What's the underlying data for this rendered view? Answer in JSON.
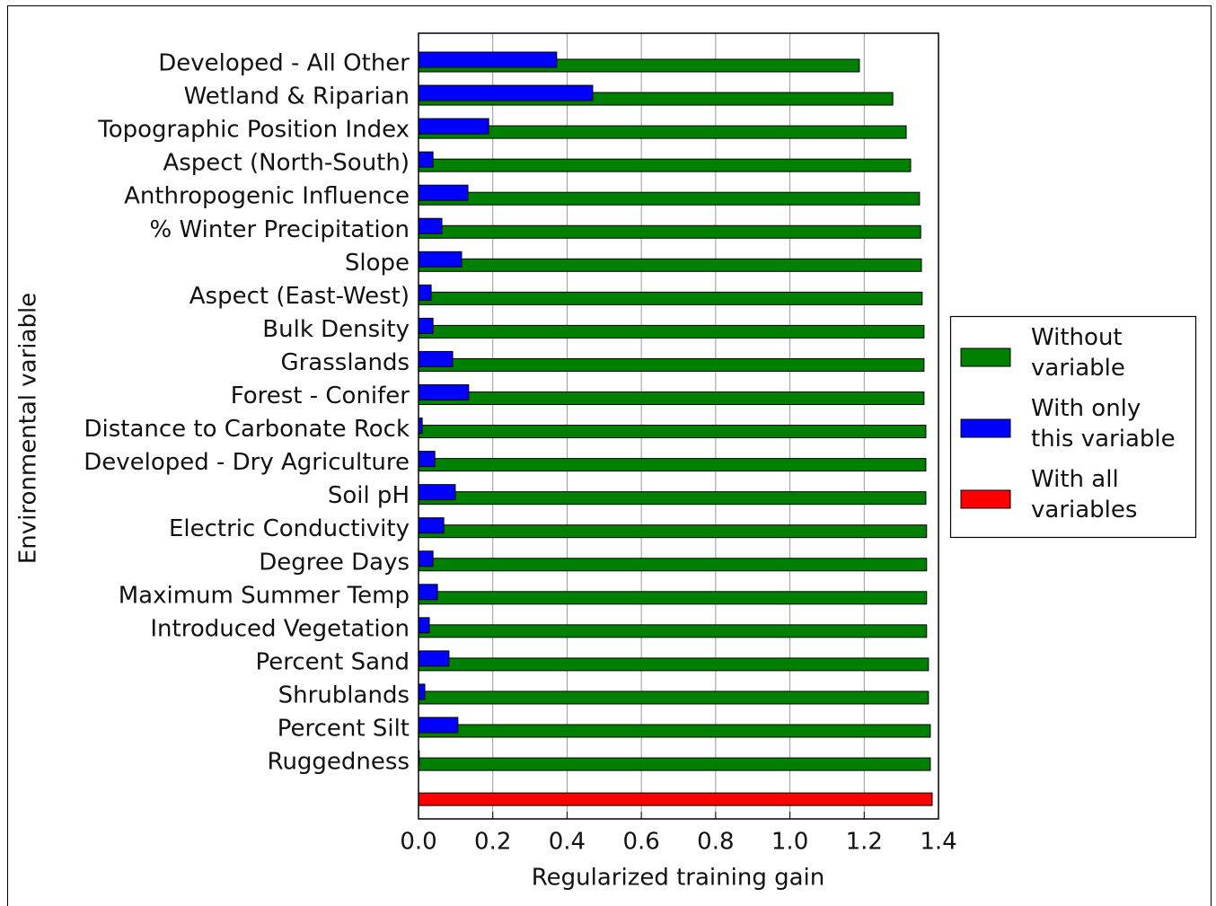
{
  "chart_data": {
    "type": "bar",
    "orientation": "horizontal",
    "x_label": "Regularized training gain",
    "y_label": "Environmental variable",
    "categories": [
      "Developed - All Other",
      "Wetland & Riparian",
      "Topographic Position Index",
      "Aspect (North-South)",
      "Anthropogenic Influence",
      "% Winter Precipitation",
      "Slope",
      "Aspect (East-West)",
      "Bulk Density",
      "Grasslands",
      "Forest - Conifer",
      "Distance to Carbonate Rock",
      "Developed - Dry Agriculture",
      "Soil pH",
      "Electric Conductivity",
      "Degree Days",
      "Maximum Summer Temp",
      "Introduced Vegetation",
      "Percent Sand",
      "Shrublands",
      "Percent Silt",
      "Ruggedness",
      null
    ],
    "series": [
      {
        "name": "Without\nvariable",
        "color": "#008000",
        "values": [
          1.187,
          1.277,
          1.313,
          1.325,
          1.349,
          1.352,
          1.354,
          1.356,
          1.361,
          1.361,
          1.361,
          1.366,
          1.366,
          1.366,
          1.368,
          1.368,
          1.368,
          1.368,
          1.373,
          1.373,
          1.378,
          1.378,
          null
        ]
      },
      {
        "name": "With only\nthis variable",
        "color": "#0000ff",
        "values": [
          0.372,
          0.469,
          0.189,
          0.039,
          0.133,
          0.063,
          0.116,
          0.034,
          0.039,
          0.092,
          0.135,
          0.01,
          0.044,
          0.099,
          0.068,
          0.039,
          0.051,
          0.029,
          0.082,
          0.017,
          0.106,
          0.002,
          null
        ]
      },
      {
        "name": "With all\nvariables",
        "color": "#ff0000",
        "values": [
          null,
          null,
          null,
          null,
          null,
          null,
          null,
          null,
          null,
          null,
          null,
          null,
          null,
          null,
          null,
          null,
          null,
          null,
          null,
          null,
          null,
          null,
          1.383
        ]
      }
    ],
    "xlim": [
      0,
      1.4
    ],
    "xticks": [
      {
        "value": 0,
        "label": "0.0"
      },
      0.2,
      0.4,
      0.6,
      0.8,
      {
        "value": 1,
        "label": "1.0"
      },
      1.2,
      1.4
    ],
    "grid": true,
    "legend": "right"
  }
}
